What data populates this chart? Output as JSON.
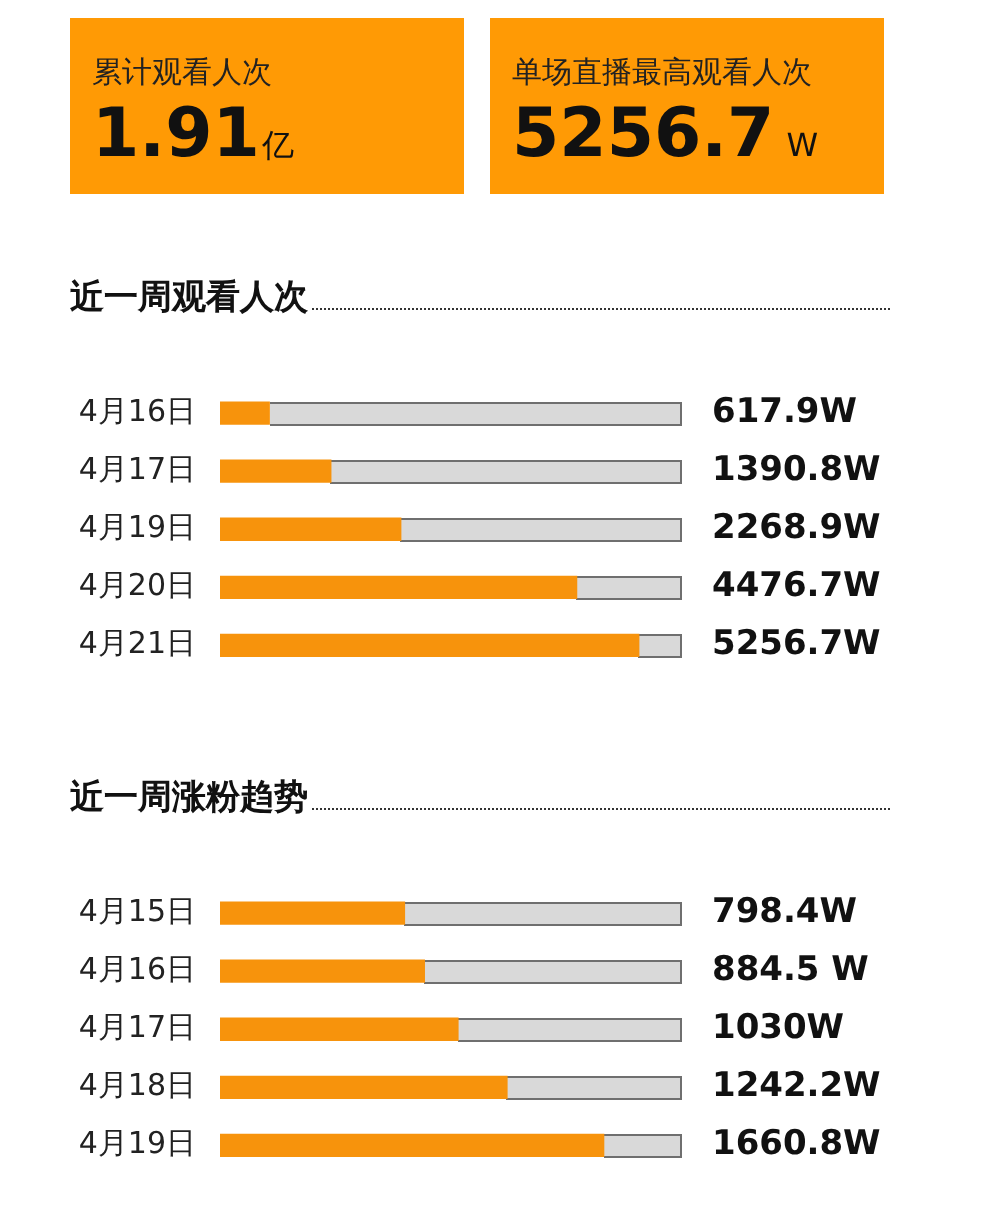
{
  "chart_data": [
    {
      "type": "other",
      "annotations": [
        "累计观看人次",
        "1.91亿",
        "单场直播最高观看人次",
        "5256.7 W"
      ]
    },
    {
      "type": "bar",
      "orientation": "horizontal",
      "title": "近一周观看人次",
      "categories": [
        "4月16日",
        "4月17日",
        "4月19日",
        "4月20日",
        "4月21日"
      ],
      "values": [
        617.9,
        1390.8,
        2268.9,
        4476.7,
        5256.7
      ],
      "value_labels": [
        "617.9W",
        "1390.8W",
        "2268.9W",
        "4476.7W",
        "5256.7W"
      ],
      "color": "#f7930c",
      "xlim": [
        0,
        5800
      ],
      "tick_labels": "y"
    },
    {
      "type": "bar",
      "orientation": "horizontal",
      "title": "近一周涨粉趋势",
      "categories": [
        "4月15日",
        "4月16日",
        "4月17日",
        "4月18日",
        "4月19日"
      ],
      "values": [
        798.4,
        884.5,
        1030,
        1242.2,
        1660.8
      ],
      "value_labels": [
        "798.4W",
        "884.5 W",
        "1030W",
        "1242.2W",
        "1660.8W"
      ],
      "color": "#f7930c",
      "tick_labels": "y"
    }
  ]
}
